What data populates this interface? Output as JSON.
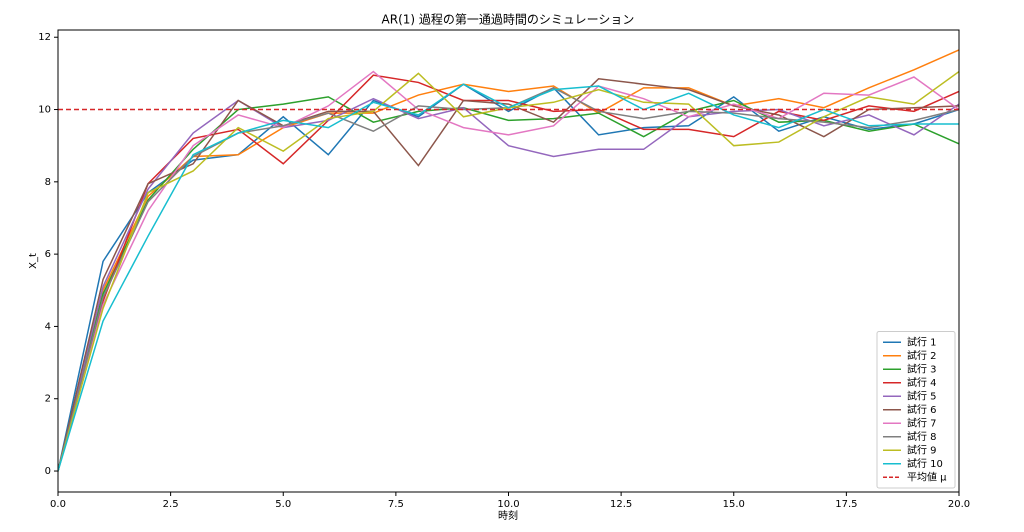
{
  "chart_data": {
    "type": "line",
    "title": "AR(1) 過程の第一通過時間のシミュレーション",
    "xlabel": "時刻",
    "ylabel": "X_t",
    "x": [
      0,
      1,
      2,
      3,
      4,
      5,
      6,
      7,
      8,
      9,
      10,
      11,
      12,
      13,
      14,
      15,
      16,
      17,
      18,
      19,
      20
    ],
    "xlim": [
      0,
      20
    ],
    "ylim": [
      -0.58,
      12.2
    ],
    "xticks": [
      {
        "value": 0,
        "label": "0.0"
      },
      {
        "value": 2.5,
        "label": "2.5"
      },
      {
        "value": 5,
        "label": "5.0"
      },
      {
        "value": 7.5,
        "label": "7.5"
      },
      {
        "value": 10,
        "label": "10.0"
      },
      {
        "value": 12.5,
        "label": "12.5"
      },
      {
        "value": 15,
        "label": "15.0"
      },
      {
        "value": 17.5,
        "label": "17.5"
      },
      {
        "value": 20,
        "label": "20.0"
      }
    ],
    "yticks": [
      0,
      2,
      4,
      6,
      8,
      10,
      12
    ],
    "legend": "lower right",
    "series": [
      {
        "name": "試行 1",
        "color": "#1f77b4",
        "values": [
          0,
          5.8,
          7.7,
          8.6,
          8.75,
          9.8,
          8.75,
          10.25,
          9.8,
          10.7,
          9.95,
          10.6,
          9.3,
          9.5,
          9.55,
          10.35,
          9.4,
          9.8,
          9.45,
          9.6,
          10.0
        ]
      },
      {
        "name": "試行 2",
        "color": "#ff7f0e",
        "values": [
          0,
          5.0,
          7.6,
          8.7,
          8.75,
          9.5,
          9.9,
          9.9,
          10.4,
          10.7,
          10.5,
          10.65,
          9.9,
          10.6,
          10.6,
          10.1,
          10.3,
          10.05,
          10.6,
          11.1,
          11.65
        ]
      },
      {
        "name": "試行 3",
        "color": "#2ca02c",
        "values": [
          0,
          4.9,
          7.5,
          8.9,
          10.0,
          10.15,
          10.35,
          9.65,
          9.95,
          10.05,
          9.7,
          9.75,
          9.9,
          9.25,
          9.95,
          10.25,
          9.65,
          9.7,
          9.4,
          9.6,
          9.05
        ]
      },
      {
        "name": "試行 4",
        "color": "#d62728",
        "values": [
          0,
          4.7,
          7.95,
          9.2,
          9.45,
          8.5,
          9.7,
          10.95,
          10.75,
          10.25,
          10.25,
          9.95,
          10.0,
          9.45,
          9.45,
          9.25,
          9.95,
          9.7,
          10.1,
          9.95,
          10.5
        ]
      },
      {
        "name": "試行 5",
        "color": "#9467bd",
        "values": [
          0,
          5.1,
          7.8,
          9.35,
          10.25,
          9.5,
          9.7,
          10.3,
          9.75,
          10.05,
          9.0,
          8.7,
          8.9,
          8.9,
          9.8,
          9.95,
          10.0,
          9.55,
          9.85,
          9.3,
          10.15
        ]
      },
      {
        "name": "試行 6",
        "color": "#8c564b",
        "values": [
          0,
          5.3,
          7.95,
          8.5,
          10.25,
          9.55,
          9.95,
          9.95,
          8.45,
          10.25,
          10.15,
          9.65,
          10.85,
          10.7,
          10.55,
          10.1,
          9.85,
          9.25,
          10.0,
          10.05,
          10.1
        ]
      },
      {
        "name": "試行 7",
        "color": "#e377c2",
        "values": [
          0,
          4.6,
          7.2,
          9.0,
          9.85,
          9.5,
          10.1,
          11.05,
          10.0,
          9.5,
          9.3,
          9.55,
          10.65,
          10.3,
          9.8,
          10.15,
          9.75,
          10.45,
          10.4,
          10.9,
          10.0
        ]
      },
      {
        "name": "試行 8",
        "color": "#7f7f7f",
        "values": [
          0,
          4.8,
          7.45,
          8.7,
          9.35,
          9.55,
          9.9,
          9.4,
          10.1,
          10.0,
          10.05,
          10.6,
          9.95,
          9.75,
          9.95,
          9.9,
          9.75,
          9.65,
          9.5,
          9.7,
          10.0
        ]
      },
      {
        "name": "試行 9",
        "color": "#bcbd22",
        "values": [
          0,
          4.5,
          7.7,
          8.3,
          9.5,
          8.85,
          9.75,
          9.95,
          11.0,
          9.8,
          10.05,
          10.2,
          10.55,
          10.2,
          10.15,
          9.0,
          9.1,
          9.8,
          10.35,
          10.15,
          11.05
        ]
      },
      {
        "name": "試行 10",
        "color": "#17becf",
        "values": [
          0,
          4.15,
          6.5,
          8.75,
          9.35,
          9.7,
          9.5,
          10.2,
          9.85,
          10.7,
          10.05,
          10.55,
          10.65,
          10.0,
          10.45,
          9.85,
          9.5,
          10.0,
          9.55,
          9.6,
          9.6
        ]
      }
    ],
    "mean": {
      "value": 10,
      "label": "平均値 μ",
      "color": "#d62728"
    }
  }
}
